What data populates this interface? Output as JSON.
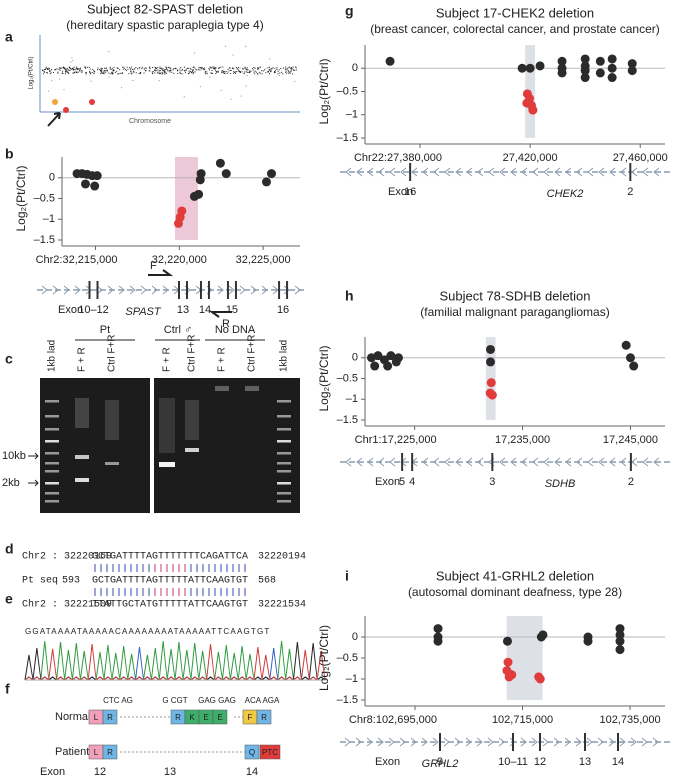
{
  "panel_labels": [
    "a",
    "b",
    "c",
    "d",
    "e",
    "f",
    "g",
    "h",
    "i"
  ],
  "panel_a": {
    "y_label": "Log₂(Pt/Ctrl)",
    "x_label": "Chromosome"
  },
  "chart_data": [
    {
      "type": "scatter",
      "title": "Subject 82-SPAST deletion",
      "subtitle": "(hereditary spastic paraplegia type 4)",
      "y_label": "Log₂(Pt/Ctrl)",
      "xlim": [
        32213000,
        32227200
      ],
      "ylim": [
        -1.5,
        0.5
      ],
      "xticks": [
        {
          "value": 32215000,
          "label": "Chr2:32,215,000"
        },
        {
          "value": 32220000,
          "label": "32,220,000"
        },
        {
          "value": 32225000,
          "label": "32,225,000"
        }
      ],
      "yticks": [
        0,
        {
          "value": -0.5,
          "label": "–0.5"
        },
        {
          "value": -1,
          "label": "–1"
        },
        {
          "value": -1.5,
          "label": "–1.5"
        }
      ],
      "zero_line": true,
      "highlight": [
        32219740,
        32221110
      ],
      "highlight_color": "#ecc8d9",
      "series": [
        {
          "color": "#2b2b2b",
          "x": [
            32213900,
            32214200,
            32214500,
            32214800,
            32215100,
            32214400,
            32214950,
            32220900,
            32221150,
            32221250,
            32221300,
            32222450,
            32222800,
            32225200,
            32225500
          ],
          "values": [
            0.1,
            0.1,
            0.08,
            0.05,
            0.05,
            -0.15,
            -0.2,
            -0.45,
            -0.4,
            -0.05,
            0.1,
            0.35,
            0.1,
            -0.1,
            0.1
          ]
        },
        {
          "color": "#e03c3c",
          "x": [
            32219950,
            32220050,
            32220150
          ],
          "values": [
            -1.1,
            -0.95,
            -0.8
          ]
        }
      ],
      "gene": {
        "name": "SPAST",
        "exon_word": "Exon",
        "primers": [
          "F",
          "R"
        ],
        "exons": [
          {
            "label": "10–12",
            "x": 32214880
          },
          {
            "label": "13",
            "x": 32220220
          },
          {
            "label": "14",
            "x": 32221530
          },
          {
            "label": "15",
            "x": 32223140
          },
          {
            "label": "16",
            "x": 32226190
          }
        ]
      }
    },
    {
      "type": "scatter",
      "title": "Subject 17-CHEK2 deletion",
      "subtitle": "(breast cancer, colorectal cancer, and prostate cancer)",
      "y_label": "Log₂(Pt/Ctrl)",
      "xlim": [
        27360000,
        27469000
      ],
      "ylim": [
        -1.5,
        0.5
      ],
      "xticks": [
        {
          "value": 27380000,
          "label": "Chr22:27,380,000"
        },
        {
          "value": 27420000,
          "label": "27,420,000"
        },
        {
          "value": 27460000,
          "label": "27,460,000"
        }
      ],
      "yticks": [
        0,
        {
          "value": -0.5,
          "label": "–0.5"
        },
        {
          "value": -1,
          "label": "–1"
        },
        {
          "value": -1.5,
          "label": "–1.5"
        }
      ],
      "zero_line": true,
      "highlight": [
        27418200,
        27421800
      ],
      "highlight_color": "#dde0e6",
      "series": [
        {
          "color": "#2b2b2b",
          "x": [
            27369100,
            27417100,
            27420000,
            27423600,
            27431600,
            27431600,
            27431600,
            27440000,
            27440000,
            27440000,
            27440000,
            27445500,
            27445500,
            27449800,
            27449800,
            27449800,
            27457100,
            27457100
          ],
          "values": [
            0.15,
            0,
            0,
            0.05,
            0.15,
            0,
            -0.1,
            0.2,
            0.05,
            -0.05,
            -0.2,
            0.15,
            -0.1,
            0.2,
            0,
            -0.2,
            0.1,
            -0.05
          ]
        },
        {
          "color": "#e03c3c",
          "x": [
            27419000,
            27419800,
            27420500,
            27421000,
            27418800
          ],
          "values": [
            -0.55,
            -0.65,
            -0.8,
            -0.9,
            -0.75
          ]
        }
      ],
      "gene": {
        "name": "CHEK2",
        "exon_word": "Exon",
        "exons": [
          {
            "label": "16",
            "x": 27376400
          },
          {
            "label": "2",
            "x": 27456400
          }
        ]
      }
    },
    {
      "type": "scatter",
      "title": "Subject 78-SDHB deletion",
      "subtitle": "(familial malignant paragangliomas)",
      "y_label": "Log₂(Pt/Ctrl)",
      "xlim": [
        17220400,
        17248200
      ],
      "ylim": [
        -1.5,
        0.5
      ],
      "xticks": [
        {
          "value": 17225000,
          "label": "Chr1:17,225,000"
        },
        {
          "value": 17235000,
          "label": "17,235,000"
        },
        {
          "value": 17245000,
          "label": "17,245,000"
        }
      ],
      "yticks": [
        0,
        {
          "value": -0.5,
          "label": "–0.5"
        },
        {
          "value": -1,
          "label": "–1"
        },
        {
          "value": -1.5,
          "label": "–1.5"
        }
      ],
      "zero_line": true,
      "highlight": [
        17231600,
        17232500
      ],
      "highlight_color": "#dde0e6",
      "series": [
        {
          "color": "#2b2b2b",
          "x": [
            17221000,
            17221600,
            17222200,
            17222800,
            17223500,
            17221300,
            17222500,
            17223300,
            17232030,
            17232030,
            17244600,
            17245000,
            17245300
          ],
          "values": [
            0,
            0.05,
            -0.05,
            0.05,
            0,
            -0.2,
            -0.2,
            -0.1,
            0.2,
            -0.1,
            0.3,
            0,
            -0.2
          ]
        },
        {
          "color": "#e03c3c",
          "x": [
            17232100,
            17232000,
            17232200
          ],
          "values": [
            -0.6,
            -0.85,
            -0.9
          ]
        }
      ],
      "gene": {
        "name": "SDHB",
        "exon_word": "Exon",
        "exons": [
          {
            "label": "5",
            "x": 17223840
          },
          {
            "label": "4",
            "x": 17224770
          },
          {
            "label": "3",
            "x": 17232200
          },
          {
            "label": "2",
            "x": 17245040
          }
        ]
      }
    },
    {
      "type": "scatter",
      "title": "Subject 41-GRHL2 deletion",
      "subtitle": "(autosomal dominant deafness, type 28)",
      "y_label": "Log₂(Pt/Ctrl)",
      "xlim": [
        102685700,
        102741500
      ],
      "ylim": [
        -1.5,
        0.5
      ],
      "xticks": [
        {
          "value": 102695000,
          "label": "Chr8:102,695,000"
        },
        {
          "value": 102715000,
          "label": "102,715,000"
        },
        {
          "value": 102735000,
          "label": "102,735,000"
        }
      ],
      "yticks": [
        0,
        {
          "value": -0.5,
          "label": "–0.5"
        },
        {
          "value": -1,
          "label": "–1"
        },
        {
          "value": -1.5,
          "label": "–1.5"
        }
      ],
      "zero_line": true,
      "highlight": [
        102712040,
        102718740
      ],
      "highlight_color": "#dde0e6",
      "series": [
        {
          "color": "#2b2b2b",
          "x": [
            102699280,
            102699280,
            102699280,
            102712200,
            102718500,
            102718800,
            102727180,
            102727180,
            102733130,
            102733130,
            102733130,
            102733130
          ],
          "values": [
            0.2,
            0,
            -0.1,
            -0.1,
            0,
            0.05,
            0,
            -0.1,
            0.2,
            0.05,
            -0.1,
            -0.3
          ]
        },
        {
          "color": "#e03c3c",
          "x": [
            102712300,
            102712100,
            102712500,
            102713000,
            102718000,
            102718300
          ],
          "values": [
            -0.6,
            -0.8,
            -0.95,
            -0.9,
            -0.95,
            -1.0
          ]
        }
      ],
      "gene": {
        "name": "GRHL2",
        "exon_word": "Exon",
        "exons": [
          {
            "label": "9",
            "x": 102699650
          },
          {
            "label": "10–11",
            "x": 102713230
          },
          {
            "label": "12",
            "x": 102718250
          },
          {
            "label": "13",
            "x": 102726620
          },
          {
            "label": "14",
            "x": 102732760
          }
        ]
      }
    }
  ],
  "gel": {
    "groups": [
      "Pt",
      "Ctrl ♂",
      "No DNA"
    ],
    "lanes": [
      "1kb lad",
      "F + R",
      "Ctrl F+R",
      "F + R",
      "Ctrl F+R",
      "F + R",
      "Ctrl F+R",
      "1kb lad"
    ],
    "markers": [
      "10kb",
      "2kb"
    ]
  },
  "sequence": {
    "rows": [
      {
        "label": "Chr2 : 32220169",
        "parts": [
          "GCTGATTTTA",
          "GTTTTT",
          "TTCAGATTCA"
        ],
        "part_colors": [
          "#3a4fb0",
          "#d2357a",
          "#222222"
        ],
        "end": "32220194"
      },
      {
        "label": "Pt  seq",
        "start": "593",
        "parts": [
          "GCTGATTTTA",
          "GTTTTT",
          "ATTCAAGTGT"
        ],
        "part_colors": [
          "#3a4fb0",
          "#d2357a",
          "#3a4fb0"
        ],
        "end": "568"
      },
      {
        "label": "Chr2 : 32221509",
        "parts": [
          "TTATTGCTAT",
          "GTTTTT",
          "ATTCAAGTGT"
        ],
        "part_colors": [
          "#222222",
          "#d2357a",
          "#3a4fb0"
        ],
        "end": "32221534"
      }
    ]
  },
  "chromatogram": {
    "bases": "GGATAAAATAAAAACAAAAAAAATAAAAATTCAAGTGT"
  },
  "transcript": {
    "normal": "Normal",
    "patient": "Patient",
    "exon_word": "Exon",
    "exons": [
      "12",
      "13",
      "14"
    ],
    "codons": [
      "CTC AG",
      "G CGT",
      "GAG GAG",
      "ACA AGA"
    ],
    "normal_boxes": [
      "L",
      "R",
      "R",
      "K",
      "E",
      "E",
      "F",
      "R"
    ],
    "patient_boxes": [
      "L",
      "R",
      "Q",
      "PTC"
    ]
  }
}
